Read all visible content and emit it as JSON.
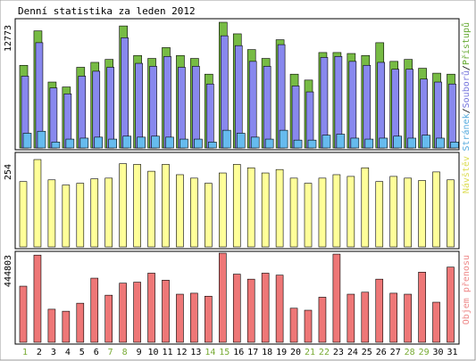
{
  "chart_data": [
    {
      "type": "bar",
      "title": "Denní statistika za leden 2012",
      "ylabel_max": "12773",
      "legend": [
        {
          "text": "Stránek",
          "color": "#55aadd"
        },
        {
          "text": "/",
          "color": "#000000"
        },
        {
          "text": "Souborů",
          "color": "#7777dd"
        },
        {
          "text": "/",
          "color": "#000000"
        },
        {
          "text": "Přístupů",
          "color": "#66aa33"
        }
      ],
      "categories": [
        "1",
        "2",
        "3",
        "4",
        "5",
        "6",
        "7",
        "8",
        "9",
        "10",
        "11",
        "12",
        "13",
        "14",
        "15",
        "16",
        "17",
        "18",
        "19",
        "20",
        "21",
        "22",
        "23",
        "24",
        "25",
        "26",
        "27",
        "28",
        "29",
        "30",
        "31"
      ],
      "weekend_days": [
        "1",
        "7",
        "8",
        "14",
        "15",
        "21",
        "22",
        "28",
        "29"
      ],
      "ylim": [
        0,
        12773
      ],
      "series": [
        {
          "name": "Přístupů",
          "color": "#77bb44",
          "values": [
            8400,
            11900,
            6700,
            6200,
            8200,
            8700,
            9000,
            12400,
            9400,
            9100,
            10200,
            9400,
            9100,
            7500,
            12773,
            11600,
            10000,
            9100,
            11000,
            7500,
            6900,
            9700,
            9700,
            9600,
            9400,
            10700,
            8800,
            9000,
            8100,
            7600,
            7500
          ]
        },
        {
          "name": "Souborů",
          "color": "#8888ee",
          "values": [
            7300,
            10700,
            6100,
            5500,
            7300,
            7800,
            8200,
            11200,
            8600,
            8300,
            9300,
            8200,
            8300,
            6500,
            11400,
            10400,
            8800,
            8300,
            10500,
            6300,
            5700,
            9200,
            9300,
            8800,
            8400,
            8700,
            8000,
            8000,
            7000,
            6700,
            6500
          ]
        },
        {
          "name": "Stránek",
          "color": "#66bbee",
          "values": [
            1500,
            1700,
            600,
            900,
            1000,
            1100,
            900,
            1200,
            1100,
            1200,
            1100,
            900,
            900,
            600,
            1800,
            1500,
            1100,
            900,
            1800,
            800,
            800,
            1300,
            1400,
            1000,
            900,
            1000,
            1200,
            1000,
            1300,
            1000,
            600
          ]
        }
      ]
    },
    {
      "type": "bar",
      "ylabel_max": "254",
      "legend": [
        {
          "text": "Návštěv",
          "color": "#dddd55"
        }
      ],
      "categories": [
        "1",
        "2",
        "3",
        "4",
        "5",
        "6",
        "7",
        "8",
        "9",
        "10",
        "11",
        "12",
        "13",
        "14",
        "15",
        "16",
        "17",
        "18",
        "19",
        "20",
        "21",
        "22",
        "23",
        "24",
        "25",
        "26",
        "27",
        "28",
        "29",
        "30",
        "31"
      ],
      "ylim": [
        0,
        254
      ],
      "series": [
        {
          "name": "Návštěv",
          "color": "#ffff99",
          "values": [
            190,
            254,
            195,
            180,
            185,
            198,
            200,
            242,
            240,
            220,
            240,
            210,
            200,
            185,
            215,
            240,
            230,
            215,
            225,
            200,
            185,
            200,
            210,
            205,
            230,
            190,
            205,
            200,
            193,
            218,
            195
          ]
        }
      ]
    },
    {
      "type": "bar",
      "ylabel_max": "444803",
      "legend": [
        {
          "text": "Objem přenosu",
          "color": "#ee8888"
        }
      ],
      "categories": [
        "1",
        "2",
        "3",
        "4",
        "5",
        "6",
        "7",
        "8",
        "9",
        "10",
        "11",
        "12",
        "13",
        "14",
        "15",
        "16",
        "17",
        "18",
        "19",
        "20",
        "21",
        "22",
        "23",
        "24",
        "25",
        "26",
        "27",
        "28",
        "29",
        "30",
        "31"
      ],
      "ylim": [
        0,
        444803
      ],
      "series": [
        {
          "name": "Objem přenosu",
          "color": "#ee7777",
          "values": [
            280000,
            435000,
            165000,
            155000,
            195000,
            320000,
            235000,
            295000,
            300000,
            345000,
            310000,
            240000,
            245000,
            230000,
            444803,
            340000,
            315000,
            345000,
            335000,
            170000,
            160000,
            225000,
            440000,
            240000,
            250000,
            315000,
            245000,
            240000,
            350000,
            200000,
            375000
          ]
        }
      ]
    }
  ]
}
